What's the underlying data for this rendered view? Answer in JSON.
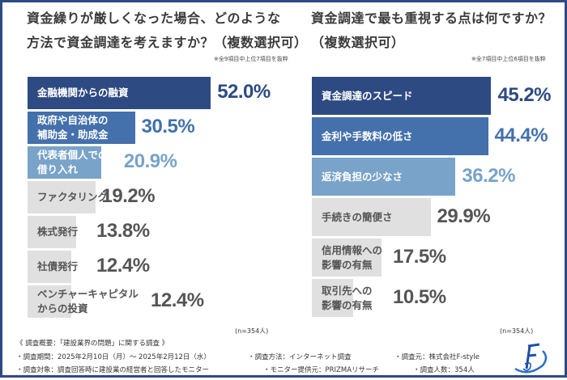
{
  "colors": {
    "frame": "#2e4a82",
    "dark": "#2e4a82",
    "mid": "#4470ab",
    "light": "#79a3c8",
    "grey": "#e0e0e0",
    "grey_text": "#555555"
  },
  "chart_data": [
    {
      "type": "bar",
      "orientation": "horizontal",
      "title": "資金繰りが厳しくなった場合、どのような方法で資金調達を考えますか？（複数選択可）",
      "title_lines": [
        "資金繰りが厳しくなった場合、どのような",
        "方法で資金調達を考えますか？（複数選択可）"
      ],
      "note": "※全9項目中上位7項目を抜粋",
      "n_label": "(n=354人)",
      "categories": [
        "金融機関からの融資",
        "政府や自治体の\n補助金・助成金",
        "代表者個人での\n借り入れ",
        "ファクタリング",
        "株式発行",
        "社債発行",
        "ベンチャーキャピタル\nからの投資"
      ],
      "values": [
        52.0,
        30.5,
        20.9,
        19.2,
        13.8,
        12.4,
        12.4
      ],
      "value_labels": [
        "52.0%",
        "30.5%",
        "20.9%",
        "19.2%",
        "13.8%",
        "12.4%",
        "12.4%"
      ],
      "unit": "%"
    },
    {
      "type": "bar",
      "orientation": "horizontal",
      "title": "資金調達で最も重視する点は何ですか？（複数選択可）",
      "title_lines": [
        "資金調達で最も重視する点は何ですか？",
        "（複数選択可）"
      ],
      "note": "※全7項目中上位6項目を抜粋",
      "n_label": "(n=354人)",
      "categories": [
        "資金調達のスピード",
        "金利や手数料の低さ",
        "返済負担の少なさ",
        "手続きの簡便さ",
        "信用情報への\n影響の有無",
        "取引先への\n影響の有無"
      ],
      "values": [
        45.2,
        44.4,
        36.2,
        29.9,
        17.5,
        10.5
      ],
      "value_labels": [
        "45.2%",
        "44.4%",
        "36.2%",
        "29.9%",
        "17.5%",
        "10.5%"
      ],
      "unit": "%"
    }
  ],
  "footer": {
    "heading": "《 調査概要：「建設業界の問題」に関する調査 》",
    "period": "・調査期間：2025年2月10日（月）～ 2025年2月12日（水）",
    "method": "・調査方法：インターネット調査",
    "source": "・調査元：株式会社F-style",
    "target": "・調査対象：調査回答時に建設業の経営者と回答したモニター",
    "provider": "・モニター提供元：PRIZMAリサーチ",
    "count": "・調査人数：354人",
    "logo_text": "F"
  }
}
